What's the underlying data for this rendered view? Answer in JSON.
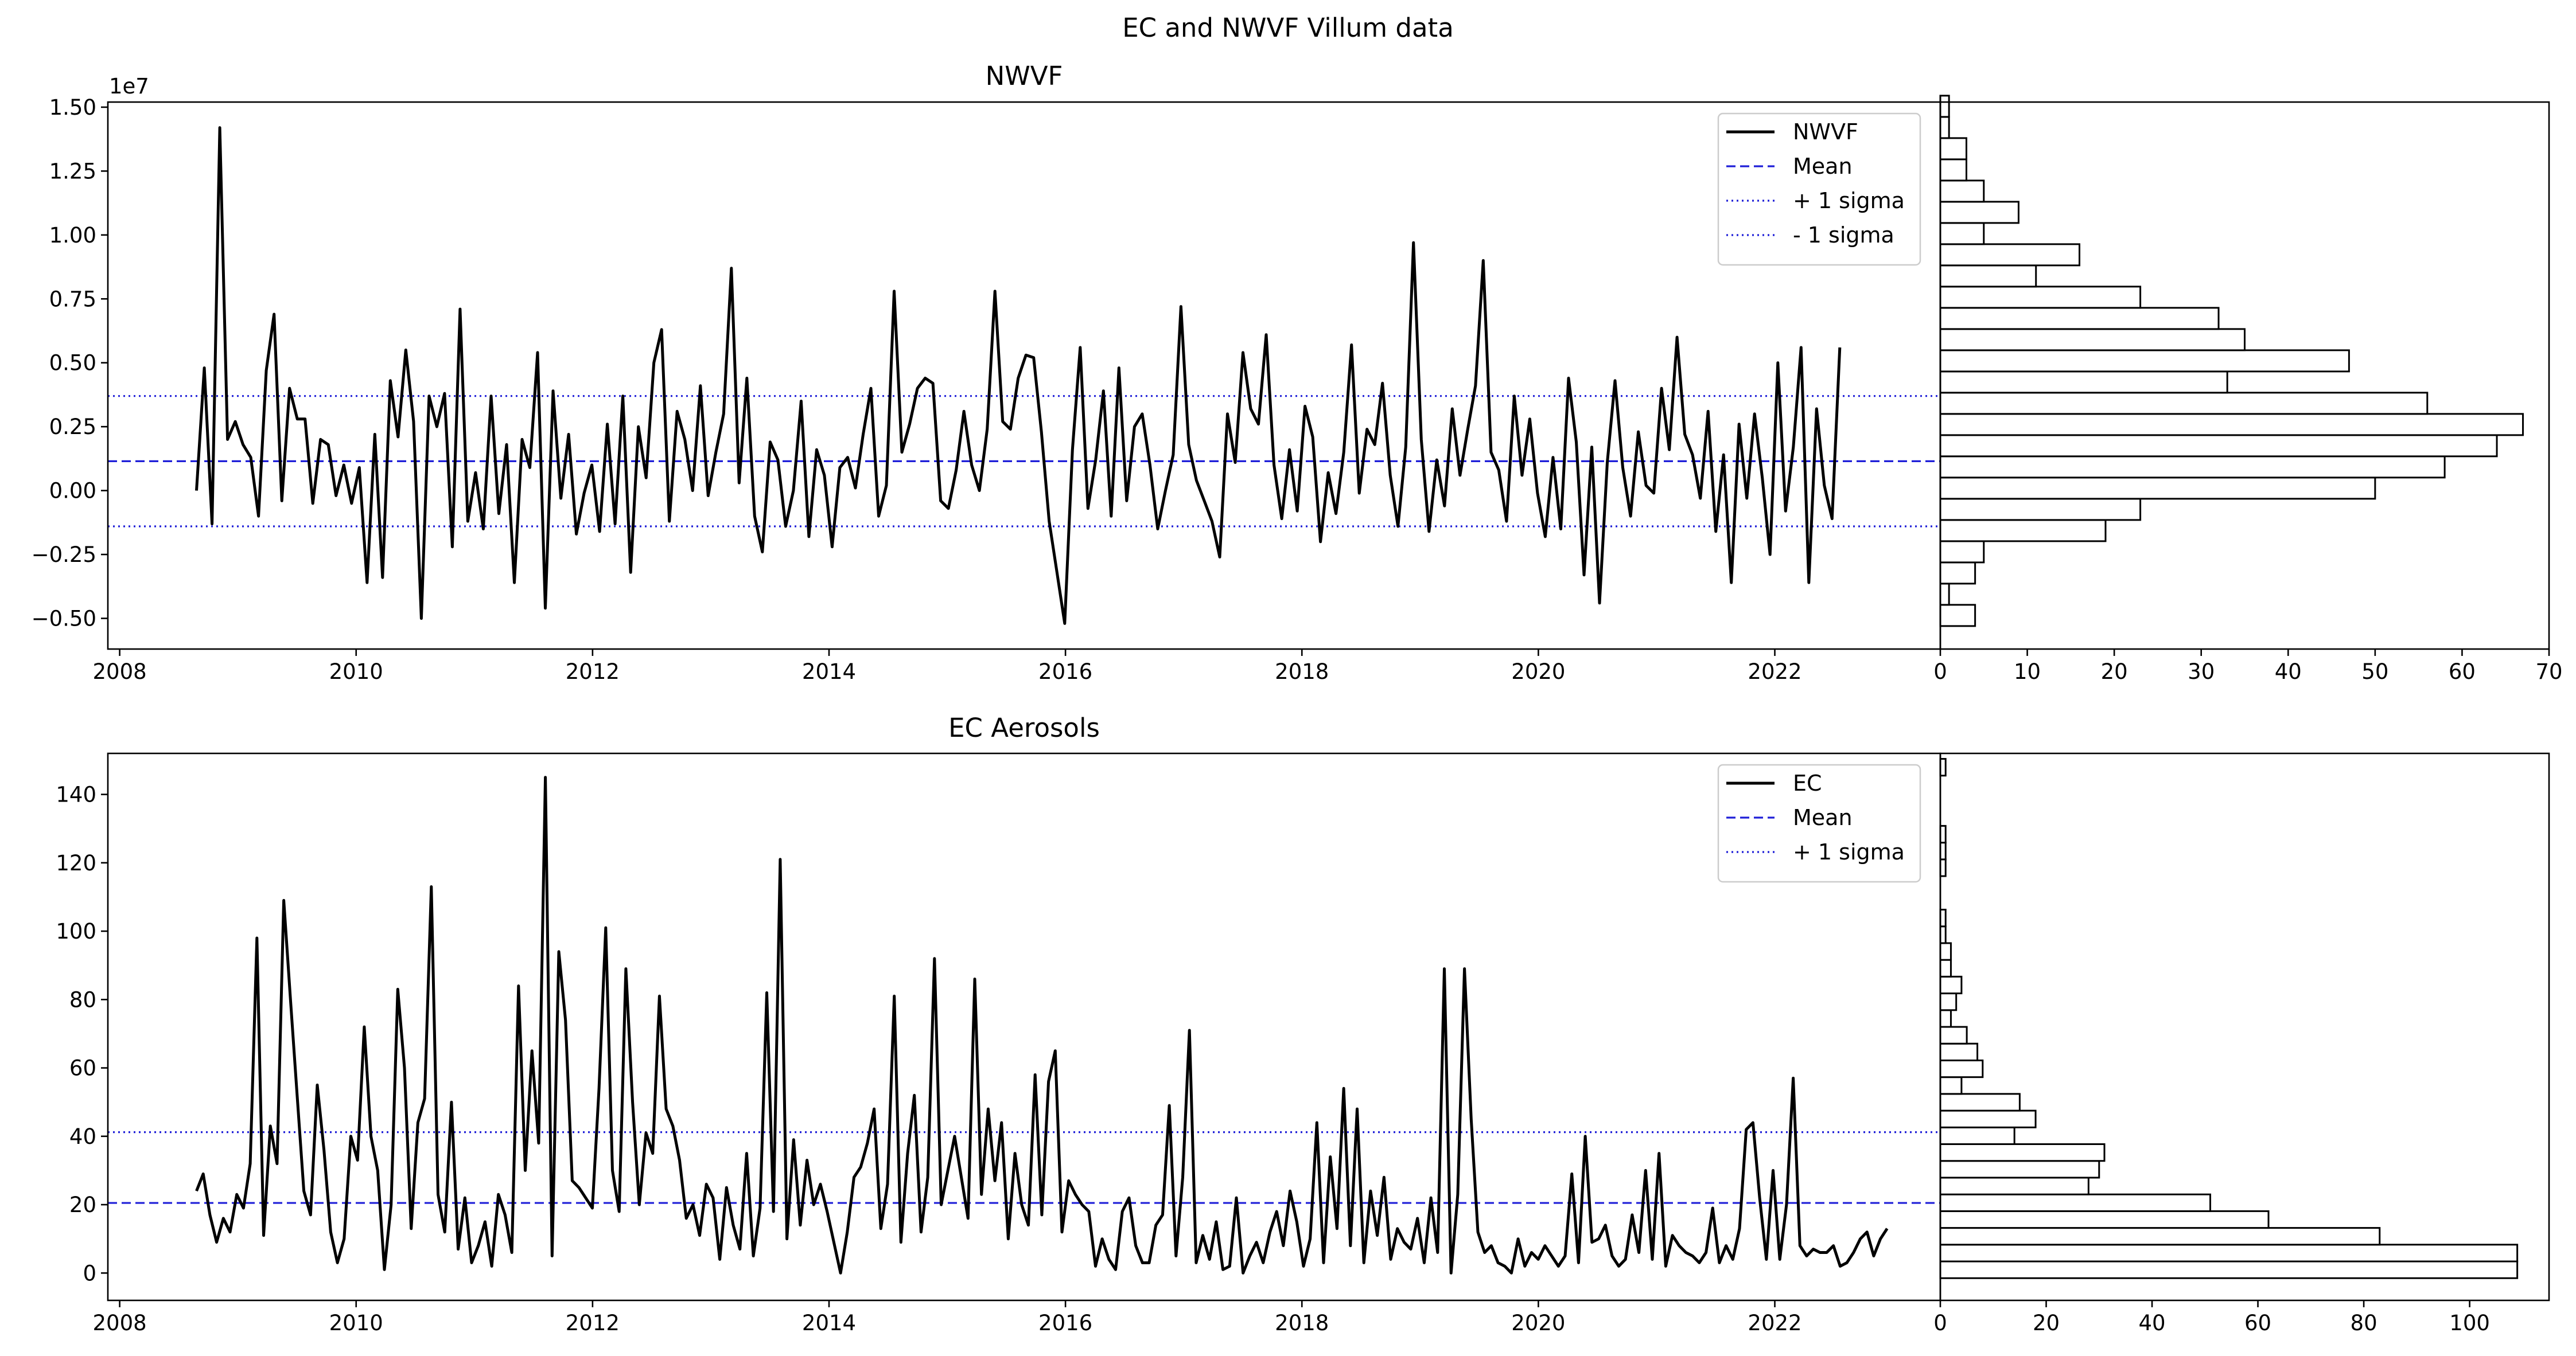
{
  "figure_title": "EC and NWVF Villum data",
  "chart_data": [
    {
      "type": "line",
      "title": "NWVF",
      "offset_label": "1e7",
      "xlabel": "",
      "ylabel": "",
      "xlim": [
        2007.9,
        2023.4
      ],
      "ylim": [
        -6.2,
        15.2
      ],
      "x_ticks": [
        2008,
        2010,
        2012,
        2014,
        2016,
        2018,
        2020,
        2022
      ],
      "x_tick_labels": [
        "2008",
        "2010",
        "2012",
        "2014",
        "2016",
        "2018",
        "2020",
        "2022"
      ],
      "y_ticks": [
        -5,
        -2.5,
        0,
        2.5,
        5,
        7.5,
        10,
        12.5,
        15
      ],
      "y_tick_labels": [
        "−0.50",
        "−0.25",
        "0.00",
        "0.25",
        "0.50",
        "0.75",
        "1.00",
        "1.25",
        "1.50"
      ],
      "grid": false,
      "legend_position": "upper right",
      "series": [
        {
          "name": "NWVF",
          "style": "solid",
          "color": "#000000",
          "x_start": 2008.65,
          "x_end": 2022.55,
          "seed": 12,
          "values": [
            0.0,
            4.8,
            -1.3,
            14.2,
            2.0,
            2.7,
            1.8,
            1.3,
            -1.0,
            4.7,
            6.9,
            -0.4,
            4.0,
            2.8,
            2.8,
            -0.5,
            2.0,
            1.8,
            -0.2,
            1.0,
            -0.5,
            0.9,
            -3.6,
            2.2,
            -3.4,
            4.3,
            2.1,
            5.5,
            2.7,
            -5.0,
            3.7,
            2.5,
            3.8,
            -2.2,
            7.1,
            -1.2,
            0.7,
            -1.5,
            3.7,
            -0.9,
            1.8,
            -3.6,
            2.0,
            0.9,
            5.4,
            -4.6,
            3.9,
            -0.3,
            2.2,
            -1.7,
            -0.1,
            1.0,
            -1.6,
            2.6,
            -1.3,
            3.7,
            -3.2,
            2.5,
            0.5,
            5.0,
            6.3,
            -1.2,
            3.1,
            2.0,
            0.0,
            4.1,
            -0.2,
            1.5,
            3.0,
            8.7,
            0.3,
            4.4,
            -1.0,
            -2.4,
            1.9,
            1.2,
            -1.4,
            0.0,
            3.5,
            -1.8,
            1.6,
            0.6,
            -2.2,
            0.9,
            1.3,
            0.1,
            2.2,
            4.0,
            -1.0,
            0.2,
            7.8,
            1.5,
            2.6,
            4.0,
            4.4,
            4.2,
            -0.4,
            -0.7,
            0.8,
            3.1,
            1.0,
            0.0,
            2.4,
            7.8,
            2.7,
            2.4,
            4.4,
            5.3,
            5.2,
            2.3,
            -1.2,
            -3.2,
            -5.2,
            1.6,
            5.6,
            -0.7,
            1.2,
            3.9,
            -1.0,
            4.8,
            -0.4,
            2.5,
            3.0,
            1.0,
            -1.5,
            0.0,
            1.4,
            7.2,
            1.8,
            0.4,
            -0.4,
            -1.2,
            -2.6,
            3.0,
            1.1,
            5.4,
            3.2,
            2.6,
            6.1,
            1.0,
            -1.1,
            1.6,
            -0.8,
            3.3,
            2.1,
            -2.0,
            0.7,
            -0.9,
            1.5,
            5.7,
            -0.1,
            2.4,
            1.8,
            4.2,
            0.6,
            -1.4,
            1.7,
            9.7,
            2.0,
            -1.6,
            1.2,
            -0.6,
            3.2,
            0.6,
            2.4,
            4.1,
            9.0,
            1.5,
            0.8,
            -1.2,
            3.7,
            0.6,
            2.8,
            -0.1,
            -1.8,
            1.3,
            -1.5,
            4.4,
            1.9,
            -3.3,
            1.7,
            -4.4,
            1.1,
            4.3,
            0.9,
            -1.0,
            2.3,
            0.2,
            -0.1,
            4.0,
            1.6,
            6.0,
            2.2,
            1.4,
            -0.3,
            3.1,
            -1.6,
            1.4,
            -3.6,
            2.6,
            -0.3,
            3.0,
            0.5,
            -2.5,
            5.0,
            -0.8,
            1.7,
            5.6,
            -3.6,
            3.2,
            0.2,
            -1.1,
            5.6
          ]
        },
        {
          "name": "Mean",
          "style": "dashed",
          "color": "#1f1fd8",
          "value": 1.15
        },
        {
          "name": "+ 1 sigma",
          "style": "dotted",
          "color": "#1f1fd8",
          "value": 3.7
        },
        {
          "name": "- 1 sigma",
          "style": "dotted",
          "color": "#1f1fd8",
          "value": -1.4
        }
      ]
    },
    {
      "type": "bar",
      "orientation": "horizontal",
      "title": "",
      "xlim": [
        0,
        70
      ],
      "x_ticks": [
        0,
        10,
        20,
        30,
        40,
        50,
        60,
        70
      ],
      "x_tick_labels": [
        "0",
        "10",
        "20",
        "30",
        "40",
        "50",
        "60",
        "70"
      ],
      "bin_start": -5.3,
      "bin_width": 0.83,
      "counts": [
        4,
        1,
        4,
        5,
        19,
        23,
        50,
        58,
        64,
        67,
        56,
        33,
        47,
        35,
        32,
        23,
        11,
        16,
        5,
        9,
        5,
        3,
        3,
        1,
        1,
        0,
        0,
        0,
        0,
        0,
        0,
        0,
        1
      ]
    },
    {
      "type": "line",
      "title": "EC Aerosols",
      "xlabel": "",
      "ylabel": "",
      "xlim": [
        2007.9,
        2023.4
      ],
      "ylim": [
        -8,
        152
      ],
      "x_ticks": [
        2008,
        2010,
        2012,
        2014,
        2016,
        2018,
        2020,
        2022
      ],
      "x_tick_labels": [
        "2008",
        "2010",
        "2012",
        "2014",
        "2016",
        "2018",
        "2020",
        "2022"
      ],
      "y_ticks": [
        0,
        20,
        40,
        60,
        80,
        100,
        120,
        140
      ],
      "y_tick_labels": [
        "0",
        "20",
        "40",
        "60",
        "80",
        "100",
        "120",
        "140"
      ],
      "grid": false,
      "legend_position": "upper right",
      "series": [
        {
          "name": "EC",
          "style": "solid",
          "color": "#000000",
          "x_start": 2008.65,
          "x_end": 2022.95,
          "values": [
            24,
            29,
            17,
            9,
            16,
            12,
            23,
            19,
            32,
            98,
            11,
            43,
            32,
            109,
            80,
            52,
            24,
            17,
            55,
            36,
            12,
            3,
            10,
            40,
            33,
            72,
            40,
            30,
            1,
            20,
            83,
            60,
            13,
            44,
            51,
            113,
            23,
            12,
            50,
            7,
            22,
            3,
            8,
            15,
            2,
            23,
            17,
            6,
            84,
            30,
            65,
            38,
            145,
            5,
            94,
            74,
            27,
            25,
            22,
            19,
            54,
            101,
            30,
            18,
            89,
            50,
            20,
            41,
            35,
            81,
            48,
            43,
            33,
            16,
            20,
            11,
            26,
            22,
            4,
            25,
            14,
            7,
            35,
            5,
            19,
            82,
            18,
            121,
            10,
            39,
            14,
            33,
            20,
            26,
            18,
            9,
            0,
            12,
            28,
            31,
            38,
            48,
            13,
            26,
            81,
            9,
            35,
            52,
            12,
            28,
            92,
            20,
            30,
            40,
            28,
            16,
            86,
            23,
            48,
            27,
            44,
            10,
            35,
            20,
            14,
            58,
            17,
            56,
            65,
            12,
            27,
            23,
            20,
            18,
            2,
            10,
            4,
            1,
            18,
            22,
            8,
            3,
            3,
            14,
            17,
            49,
            5,
            28,
            71,
            3,
            11,
            4,
            15,
            1,
            2,
            22,
            0,
            5,
            9,
            3,
            12,
            18,
            8,
            24,
            15,
            2,
            10,
            44,
            3,
            34,
            13,
            54,
            8,
            48,
            3,
            24,
            11,
            28,
            4,
            13,
            9,
            7,
            16,
            3,
            22,
            6,
            89,
            0,
            23,
            89,
            45,
            12,
            6,
            8,
            3,
            2,
            0,
            10,
            2,
            6,
            4,
            8,
            5,
            2,
            5,
            29,
            3,
            40,
            9,
            10,
            14,
            5,
            2,
            4,
            17,
            6,
            30,
            4,
            35,
            2,
            11,
            8,
            6,
            5,
            3,
            6,
            19,
            3,
            8,
            4,
            13,
            42,
            44,
            22,
            4,
            30,
            4,
            20,
            57,
            8,
            5,
            7,
            6,
            6,
            8,
            2,
            3,
            6,
            10,
            12,
            5,
            10,
            13
          ]
        },
        {
          "name": "Mean",
          "style": "dashed",
          "color": "#1f1fd8",
          "value": 20.5
        },
        {
          "name": "+ 1 sigma",
          "style": "dotted",
          "color": "#1f1fd8",
          "value": 41.2
        }
      ]
    },
    {
      "type": "bar",
      "orientation": "horizontal",
      "title": "",
      "xlim": [
        0,
        115
      ],
      "x_ticks": [
        0,
        20,
        40,
        60,
        80,
        100
      ],
      "x_tick_labels": [
        "0",
        "20",
        "40",
        "60",
        "80",
        "100"
      ],
      "bin_start": -1.5,
      "bin_width": 4.9,
      "counts": [
        109,
        109,
        83,
        62,
        51,
        28,
        30,
        31,
        14,
        18,
        15,
        4,
        8,
        7,
        5,
        2,
        3,
        4,
        2,
        2,
        1,
        1,
        0,
        0,
        1,
        1,
        1,
        0,
        0,
        0,
        1
      ]
    }
  ]
}
